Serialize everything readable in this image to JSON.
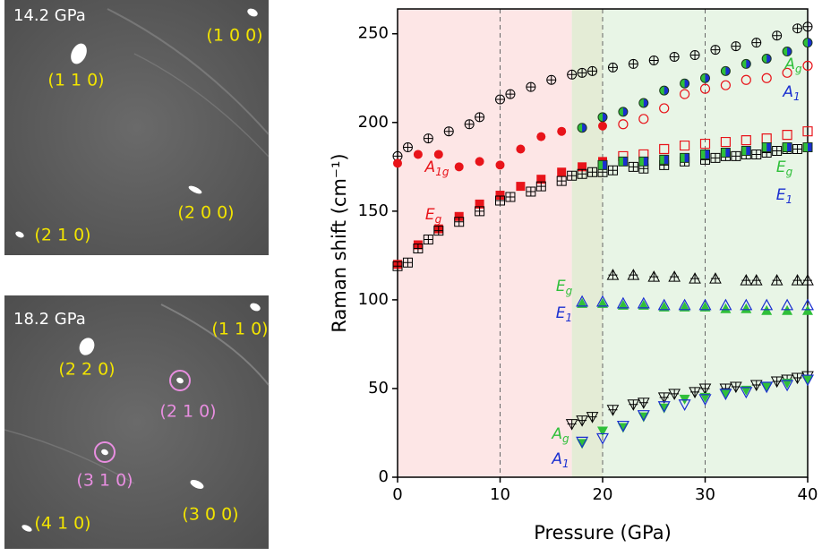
{
  "panels": [
    {
      "pressure": "14.2 GPa",
      "reflections": [
        {
          "label": "(1 0 0)",
          "color": "#f2e400"
        },
        {
          "label": "(1 1 0)",
          "color": "#f2e400"
        },
        {
          "label": "(2 0 0)",
          "color": "#f2e400"
        },
        {
          "label": "(2 1 0)",
          "color": "#f2e400"
        }
      ]
    },
    {
      "pressure": "18.2 GPa",
      "reflections": [
        {
          "label": "(1 1 0)",
          "color": "#f2e400"
        },
        {
          "label": "(2 2 0)",
          "color": "#f2e400"
        },
        {
          "label": "(2 1 0)",
          "color": "#e88ee0"
        },
        {
          "label": "(3 1 0)",
          "color": "#e88ee0"
        },
        {
          "label": "(3 0 0)",
          "color": "#f2e400"
        },
        {
          "label": "(4 1 0)",
          "color": "#f2e400"
        }
      ]
    }
  ],
  "chart_data": {
    "type": "scatter",
    "xlabel": "Pressure (GPa)",
    "ylabel": "Raman shift (cm⁻¹)",
    "xlim": [
      0,
      40
    ],
    "ylim": [
      0,
      264
    ],
    "xticks": [
      0,
      10,
      20,
      30,
      40
    ],
    "yticks": [
      0,
      50,
      100,
      150,
      200,
      250
    ],
    "regions": [
      {
        "from": 0,
        "to": 17,
        "color": "#fde6e6"
      },
      {
        "from": 17,
        "to": 20,
        "color": "#e4ecd6"
      },
      {
        "from": 20,
        "to": 40,
        "color": "#e8f5e6"
      }
    ],
    "vlines": [
      10,
      20,
      30
    ],
    "series": [
      {
        "marker": "circle-plus",
        "color": "#000000",
        "x": [
          0,
          1,
          3,
          5,
          7,
          8,
          10,
          11,
          13,
          15,
          17,
          18,
          19,
          21,
          23,
          25,
          27,
          29,
          31,
          33,
          35,
          37,
          39,
          40
        ],
        "values": [
          181,
          186,
          191,
          195,
          199,
          203,
          213,
          216,
          220,
          224,
          227,
          228,
          229,
          231,
          233,
          235,
          237,
          238,
          241,
          243,
          245,
          249,
          253,
          254
        ]
      },
      {
        "marker": "circle",
        "color": "#e8141a",
        "x": [
          0,
          2,
          4,
          6,
          8,
          10,
          12,
          14,
          16,
          18,
          20
        ],
        "values": [
          177,
          182,
          182,
          175,
          178,
          176,
          185,
          192,
          195,
          197,
          198
        ]
      },
      {
        "marker": "square",
        "color": "#e8141a",
        "x": [
          0,
          2,
          4,
          6,
          8,
          10,
          12,
          14,
          16,
          18,
          20
        ],
        "values": [
          120,
          131,
          140,
          147,
          154,
          159,
          164,
          168,
          172,
          175,
          178
        ]
      },
      {
        "marker": "square-plus",
        "color": "#000000",
        "x": [
          0,
          1,
          2,
          3,
          4,
          6,
          8,
          10,
          11,
          13,
          14,
          16,
          17,
          18,
          19,
          20,
          21,
          23,
          24,
          26,
          28,
          30,
          31,
          32,
          33,
          34,
          35,
          36,
          37,
          38,
          39,
          40
        ],
        "values": [
          119,
          121,
          129,
          134,
          139,
          144,
          150,
          156,
          158,
          161,
          164,
          167,
          170,
          171,
          172,
          172,
          173,
          175,
          174,
          176,
          178,
          179,
          180,
          181,
          181,
          182,
          182,
          183,
          184,
          185,
          185,
          186
        ]
      },
      {
        "marker": "circle-half",
        "color": "#2fbf3a",
        "color2": "#1a2fd0",
        "x": [
          18,
          20,
          22,
          24,
          26,
          28,
          30,
          32,
          34,
          36,
          38,
          40
        ],
        "values": [
          197,
          203,
          206,
          211,
          218,
          222,
          225,
          229,
          233,
          236,
          240,
          245
        ]
      },
      {
        "marker": "circle-open",
        "color": "#e8141a",
        "x": [
          22,
          24,
          26,
          28,
          30,
          32,
          34,
          36,
          38,
          40
        ],
        "values": [
          199,
          202,
          208,
          216,
          219,
          221,
          224,
          225,
          228,
          232
        ]
      },
      {
        "marker": "square-open",
        "color": "#e8141a",
        "x": [
          22,
          24,
          26,
          28,
          30,
          32,
          34,
          36,
          38,
          40
        ],
        "values": [
          181,
          182,
          185,
          187,
          188,
          189,
          190,
          191,
          193,
          195
        ]
      },
      {
        "marker": "square-half",
        "color": "#2fbf3a",
        "color2": "#1a2fd0",
        "x": [
          20,
          22,
          24,
          26,
          28,
          30,
          32,
          34,
          36,
          38,
          40
        ],
        "values": [
          176,
          178,
          178,
          179,
          180,
          182,
          183,
          184,
          186,
          186,
          186
        ]
      },
      {
        "marker": "tri-up-plus",
        "color": "#000000",
        "x": [
          21,
          23,
          25,
          27,
          29,
          31,
          34,
          35,
          37,
          39,
          40
        ],
        "values": [
          114,
          114,
          113,
          113,
          112,
          112,
          111,
          111,
          111,
          111,
          111
        ]
      },
      {
        "marker": "tri-up",
        "color": "#2fbf3a",
        "x": [
          18,
          20,
          22,
          24,
          26,
          28,
          30,
          32,
          34,
          36,
          38,
          40
        ],
        "values": [
          98,
          98,
          97,
          97,
          96,
          96,
          96,
          95,
          95,
          94,
          94,
          94
        ]
      },
      {
        "marker": "tri-up-open",
        "color": "#1a2fd0",
        "x": [
          18,
          20,
          22,
          24,
          26,
          28,
          30,
          32,
          34,
          36,
          38,
          40
        ],
        "values": [
          99,
          99,
          98,
          98,
          97,
          97,
          97,
          97,
          97,
          97,
          97,
          97
        ]
      },
      {
        "marker": "tri-down-plus",
        "color": "#000000",
        "x": [
          17,
          18,
          19,
          21,
          23,
          24,
          26,
          27,
          29,
          30,
          32,
          33,
          35,
          37,
          38,
          39,
          40
        ],
        "values": [
          30,
          32,
          34,
          38,
          41,
          42,
          45,
          47,
          48,
          50,
          50,
          51,
          52,
          54,
          55,
          56,
          57
        ]
      },
      {
        "marker": "tri-down",
        "color": "#2fbf3a",
        "x": [
          18,
          20,
          22,
          24,
          26,
          28,
          30,
          32,
          34,
          36,
          38,
          40
        ],
        "values": [
          19,
          26,
          28,
          34,
          39,
          44,
          45,
          47,
          49,
          51,
          53,
          55
        ]
      },
      {
        "marker": "tri-down-open",
        "color": "#1a2fd0",
        "x": [
          18,
          20,
          22,
          24,
          26,
          28,
          30,
          32,
          34,
          36,
          38,
          40
        ],
        "values": [
          20,
          22,
          29,
          35,
          40,
          41,
          44,
          47,
          48,
          51,
          52,
          55
        ]
      }
    ],
    "annotations": [
      {
        "text": "A",
        "sub": "1g",
        "color": "#e8141a"
      },
      {
        "text": "E",
        "sub": "g",
        "color": "#e8141a"
      },
      {
        "text": "A",
        "sub": "g",
        "color": "#2fbf3a"
      },
      {
        "text": "A",
        "sub": "1",
        "color": "#1a2fd0"
      },
      {
        "text": "E",
        "sub": "g",
        "color": "#2fbf3a"
      },
      {
        "text": "E",
        "sub": "1",
        "color": "#1a2fd0"
      },
      {
        "text": "E",
        "sub": "g",
        "color": "#2fbf3a"
      },
      {
        "text": "E",
        "sub": "1",
        "color": "#1a2fd0"
      },
      {
        "text": "A",
        "sub": "g",
        "color": "#2fbf3a"
      },
      {
        "text": "A",
        "sub": "1",
        "color": "#1a2fd0"
      }
    ]
  }
}
